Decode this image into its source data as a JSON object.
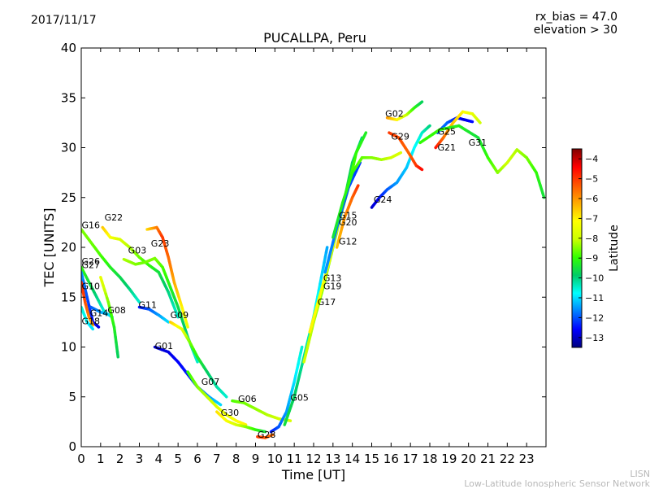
{
  "header": {
    "date": "2017/11/17",
    "rx_bias": "rx_bias = 47.0",
    "elevation": "elevation > 30"
  },
  "credits": {
    "line1": "LISN",
    "line2": "Low-Latitude Ionospheric Sensor Network"
  },
  "colormap": [
    "#00007f",
    "#0000ff",
    "#007fff",
    "#00ffff",
    "#00cc66",
    "#33ff00",
    "#ccff00",
    "#ffff00",
    "#ffaa00",
    "#ff5500",
    "#ff0000",
    "#7f0000"
  ],
  "chart_data": {
    "type": "scatter",
    "title": "PUCALLPA, Peru",
    "xlabel": "Time [UT]",
    "ylabel": "TEC [UNITS]",
    "xlim": [
      0,
      24
    ],
    "ylim": [
      0,
      40
    ],
    "x_ticks": [
      "0",
      "1",
      "2",
      "3",
      "4",
      "5",
      "6",
      "7",
      "8",
      "9",
      "10",
      "11",
      "12",
      "13",
      "14",
      "15",
      "16",
      "17",
      "18",
      "19",
      "20",
      "21",
      "22",
      "23"
    ],
    "y_ticks": [
      "0",
      "5",
      "10",
      "15",
      "20",
      "25",
      "30",
      "35",
      "40"
    ],
    "colorbar": {
      "label": "Latitude",
      "min": -13.5,
      "max": -3.5,
      "ticks": [
        "−4",
        "−5",
        "−6",
        "−7",
        "−8",
        "−9",
        "−10",
        "−11",
        "−12",
        "−13"
      ],
      "tick_values": [
        -4,
        -5,
        -6,
        -7,
        -8,
        -9,
        -10,
        -11,
        -12,
        -13
      ]
    },
    "series": [
      {
        "name": "G16",
        "label_at": [
          0.02,
          21.9
        ],
        "points": [
          [
            0.0,
            21.8,
            -8.5
          ],
          [
            0.5,
            20.5,
            -8.6
          ],
          [
            1.0,
            19.2,
            -8.8
          ],
          [
            1.5,
            18.0,
            -9.2
          ],
          [
            2.0,
            17.0,
            -9.6
          ],
          [
            2.5,
            15.8,
            -10.0
          ],
          [
            3.0,
            14.5,
            -10.5
          ]
        ]
      },
      {
        "name": "G22",
        "label_at": [
          1.2,
          22.7
        ],
        "points": [
          [
            1.1,
            22.0,
            -6.5
          ],
          [
            1.5,
            21.0,
            -7.2
          ],
          [
            2.0,
            20.8,
            -7.8
          ],
          [
            2.5,
            20.0,
            -8.2
          ],
          [
            3.0,
            19.0,
            -8.6
          ],
          [
            3.5,
            18.2,
            -9.0
          ],
          [
            4.0,
            17.5,
            -9.5
          ],
          [
            4.5,
            15.5,
            -10.0
          ],
          [
            5.0,
            13.0,
            -10.5
          ]
        ]
      },
      {
        "name": "G03",
        "label_at": [
          2.42,
          19.4
        ],
        "points": [
          [
            2.2,
            18.8,
            -8.2
          ],
          [
            2.8,
            18.3,
            -8.5
          ],
          [
            3.3,
            18.5,
            -8.6
          ],
          [
            3.8,
            18.9,
            -8.5
          ],
          [
            4.2,
            18.0,
            -8.8
          ],
          [
            4.6,
            16.0,
            -9.2
          ],
          [
            5.0,
            14.0,
            -9.6
          ],
          [
            5.5,
            11.0,
            -10.0
          ],
          [
            6.0,
            8.5,
            -10.5
          ]
        ]
      },
      {
        "name": "G23",
        "label_at": [
          3.6,
          20.1
        ],
        "points": [
          [
            3.4,
            21.8,
            -6.8
          ],
          [
            3.9,
            22.0,
            -5.8
          ],
          [
            4.2,
            21.0,
            -5.0
          ],
          [
            4.5,
            19.0,
            -5.5
          ],
          [
            4.8,
            16.5,
            -6.2
          ],
          [
            5.2,
            14.0,
            -7.0
          ],
          [
            5.5,
            12.0,
            -7.5
          ]
        ]
      },
      {
        "name": "G26",
        "label_at": [
          0.02,
          18.3
        ],
        "points": [
          [
            0.0,
            18.0,
            -9.0
          ],
          [
            0.4,
            16.5,
            -9.5
          ],
          [
            0.8,
            15.0,
            -10.0
          ],
          [
            1.2,
            13.5,
            -10.6
          ],
          [
            1.6,
            13.0,
            -11.2
          ]
        ]
      },
      {
        "name": "G27",
        "label_at": [
          0.02,
          17.9
        ],
        "points": [
          [
            0.0,
            17.5,
            -11.5
          ],
          [
            0.3,
            15.0,
            -12.0
          ],
          [
            0.6,
            12.5,
            -12.5
          ],
          [
            0.9,
            12.0,
            -12.8
          ]
        ]
      },
      {
        "name": "G10",
        "label_at": [
          0.02,
          15.8
        ],
        "points": [
          [
            0.0,
            16.5,
            -4.8
          ],
          [
            0.2,
            14.5,
            -5.2
          ],
          [
            0.4,
            13.0,
            -5.8
          ],
          [
            0.6,
            12.2,
            -6.2
          ]
        ]
      },
      {
        "name": "G14",
        "label_at": [
          0.45,
          13.1
        ],
        "points": [
          [
            0.5,
            14.0,
            -12.0
          ],
          [
            1.0,
            13.5,
            -11.5
          ],
          [
            1.5,
            13.2,
            -11.0
          ]
        ]
      },
      {
        "name": "G18",
        "label_at": [
          0.02,
          12.3
        ],
        "points": [
          [
            0.0,
            14.0,
            -10.5
          ],
          [
            0.3,
            12.5,
            -10.8
          ],
          [
            0.6,
            11.8,
            -11.0
          ]
        ]
      },
      {
        "name": "G08",
        "label_at": [
          1.36,
          13.4
        ],
        "points": [
          [
            1.0,
            17.0,
            -7.5
          ],
          [
            1.4,
            14.5,
            -8.5
          ],
          [
            1.7,
            12.0,
            -9.2
          ],
          [
            1.9,
            9.0,
            -9.8
          ]
        ]
      },
      {
        "name": "G11",
        "label_at": [
          2.96,
          13.9
        ],
        "points": [
          [
            3.0,
            14.0,
            -12.5
          ],
          [
            3.5,
            13.8,
            -12.0
          ],
          [
            4.0,
            13.2,
            -11.5
          ],
          [
            4.5,
            12.5,
            -11.0
          ]
        ]
      },
      {
        "name": "G01",
        "label_at": [
          3.8,
          9.8
        ],
        "points": [
          [
            3.8,
            10.0,
            -13.0
          ],
          [
            4.5,
            9.5,
            -12.8
          ],
          [
            5.0,
            8.5,
            -12.6
          ],
          [
            5.6,
            7.0,
            -12.4
          ],
          [
            6.0,
            6.0,
            -12.0
          ],
          [
            6.6,
            5.0,
            -11.5
          ],
          [
            7.2,
            4.2,
            -11.0
          ]
        ]
      },
      {
        "name": "G09",
        "label_at": [
          4.6,
          12.9
        ],
        "points": [
          [
            4.6,
            12.5,
            -6.5
          ],
          [
            5.2,
            11.8,
            -7.5
          ],
          [
            5.6,
            10.5,
            -8.5
          ],
          [
            6.0,
            9.0,
            -9.2
          ],
          [
            6.5,
            7.5,
            -9.8
          ],
          [
            7.0,
            6.0,
            -10.2
          ],
          [
            7.5,
            5.0,
            -10.5
          ]
        ]
      },
      {
        "name": "G07",
        "label_at": [
          6.2,
          6.2
        ],
        "points": [
          [
            5.5,
            7.5,
            -9.0
          ],
          [
            6.0,
            6.0,
            -8.5
          ],
          [
            6.5,
            5.0,
            -8.2
          ],
          [
            7.0,
            4.0,
            -7.8
          ],
          [
            7.5,
            3.2,
            -7.5
          ],
          [
            8.0,
            2.6,
            -7.2
          ],
          [
            8.5,
            2.2,
            -7.0
          ]
        ]
      },
      {
        "name": "G30",
        "label_at": [
          7.2,
          3.1
        ],
        "points": [
          [
            7.0,
            3.5,
            -6.8
          ],
          [
            7.5,
            2.6,
            -7.2
          ],
          [
            8.0,
            2.2,
            -7.8
          ],
          [
            8.5,
            2.0,
            -8.4
          ],
          [
            9.0,
            1.7,
            -9.0
          ],
          [
            9.5,
            1.5,
            -9.5
          ]
        ]
      },
      {
        "name": "G06",
        "label_at": [
          8.1,
          4.5
        ],
        "points": [
          [
            7.8,
            4.6,
            -8.8
          ],
          [
            8.4,
            4.4,
            -8.6
          ],
          [
            9.0,
            3.8,
            -8.4
          ],
          [
            9.6,
            3.2,
            -8.2
          ],
          [
            10.2,
            2.8,
            -8.0
          ],
          [
            10.8,
            2.6,
            -7.8
          ]
        ]
      },
      {
        "name": "G28",
        "label_at": [
          9.1,
          0.9
        ],
        "points": [
          [
            9.1,
            1.0,
            -5.0
          ],
          [
            9.5,
            0.9,
            -5.3
          ],
          [
            9.9,
            1.2,
            -5.6
          ]
        ]
      },
      {
        "name": "G05",
        "label_at": [
          10.8,
          4.6
        ],
        "points": [
          [
            9.8,
            1.5,
            -12.5
          ],
          [
            10.2,
            2.0,
            -12.0
          ],
          [
            10.6,
            3.5,
            -11.5
          ],
          [
            11.0,
            6.5,
            -11.0
          ],
          [
            11.4,
            10.0,
            -10.5
          ]
        ]
      },
      {
        "name": "G17",
        "label_at": [
          12.2,
          14.2
        ],
        "points": [
          [
            10.5,
            2.2,
            -9.5
          ],
          [
            11.0,
            5.0,
            -9.8
          ],
          [
            11.5,
            9.0,
            -10.2
          ],
          [
            12.0,
            13.0,
            -10.5
          ],
          [
            12.4,
            17.0,
            -11.0
          ],
          [
            12.7,
            20.0,
            -11.4
          ]
        ]
      },
      {
        "name": "G19",
        "label_at": [
          12.5,
          15.8
        ],
        "points": [
          [
            11.5,
            8.5,
            -8.0
          ],
          [
            12.0,
            12.5,
            -8.2
          ],
          [
            12.5,
            16.0,
            -8.5
          ],
          [
            13.0,
            20.0,
            -8.8
          ],
          [
            13.5,
            24.0,
            -9.2
          ],
          [
            14.0,
            28.5,
            -9.8
          ],
          [
            14.5,
            31.0,
            -10.0
          ]
        ]
      },
      {
        "name": "G13",
        "label_at": [
          12.5,
          16.6
        ],
        "points": [
          [
            11.8,
            11.5,
            -7.0
          ],
          [
            12.3,
            15.0,
            -7.2
          ],
          [
            12.8,
            18.5,
            -7.5
          ],
          [
            13.3,
            22.5,
            -8.0
          ],
          [
            13.8,
            26.0,
            -8.6
          ],
          [
            14.2,
            29.5,
            -9.0
          ],
          [
            14.7,
            31.5,
            -9.3
          ]
        ]
      },
      {
        "name": "G12",
        "label_at": [
          13.3,
          20.3
        ],
        "points": [
          [
            13.2,
            20.0,
            -6.5
          ],
          [
            13.6,
            23.0,
            -6.0
          ],
          [
            14.0,
            25.0,
            -5.5
          ],
          [
            14.3,
            26.2,
            -5.0
          ]
        ]
      },
      {
        "name": "G20",
        "label_at": [
          13.3,
          22.2
        ],
        "points": [
          [
            12.6,
            17.5,
            -11.5
          ],
          [
            13.2,
            22.0,
            -11.8
          ],
          [
            13.8,
            26.0,
            -12.0
          ],
          [
            14.4,
            28.5,
            -12.2
          ]
        ]
      },
      {
        "name": "G15",
        "label_at": [
          13.3,
          22.9
        ],
        "points": [
          [
            13.0,
            21.0,
            -9.5
          ],
          [
            13.5,
            24.5,
            -9.2
          ],
          [
            14.0,
            27.5,
            -9.0
          ],
          [
            14.5,
            29.0,
            -8.7
          ],
          [
            15.0,
            29.0,
            -8.5
          ],
          [
            15.5,
            28.8,
            -8.3
          ],
          [
            16.0,
            29.0,
            -8.0
          ],
          [
            16.5,
            29.5,
            -7.8
          ]
        ]
      },
      {
        "name": "G24",
        "label_at": [
          15.1,
          24.5
        ],
        "points": [
          [
            15.0,
            24.0,
            -13.0
          ],
          [
            15.4,
            25.0,
            -12.5
          ],
          [
            15.8,
            25.8,
            -12.0
          ],
          [
            16.3,
            26.5,
            -11.5
          ],
          [
            16.8,
            28.0,
            -11.2
          ],
          [
            17.2,
            30.0,
            -10.8
          ],
          [
            17.6,
            31.5,
            -10.5
          ],
          [
            18.0,
            32.2,
            -10.0
          ]
        ]
      },
      {
        "name": "G02",
        "label_at": [
          15.7,
          33.1
        ],
        "points": [
          [
            15.8,
            33.0,
            -6.0
          ],
          [
            16.3,
            32.8,
            -7.0
          ],
          [
            16.8,
            33.3,
            -8.0
          ],
          [
            17.2,
            34.0,
            -9.0
          ],
          [
            17.6,
            34.6,
            -9.8
          ]
        ]
      },
      {
        "name": "G29",
        "label_at": [
          16.0,
          30.8
        ],
        "points": [
          [
            15.9,
            31.5,
            -5.0
          ],
          [
            16.4,
            31.0,
            -5.2
          ],
          [
            16.9,
            29.5,
            -5.5
          ],
          [
            17.3,
            28.2,
            -5.0
          ],
          [
            17.6,
            27.8,
            -4.5
          ]
        ]
      },
      {
        "name": "G25",
        "label_at": [
          18.4,
          31.3
        ],
        "points": [
          [
            18.4,
            31.5,
            -12.0
          ],
          [
            18.9,
            32.5,
            -11.8
          ],
          [
            19.4,
            33.0,
            -12.5
          ],
          [
            19.8,
            32.8,
            -12.8
          ],
          [
            20.2,
            32.6,
            -12.5
          ]
        ]
      },
      {
        "name": "G21",
        "label_at": [
          18.4,
          29.7
        ],
        "points": [
          [
            18.3,
            30.0,
            -4.5
          ],
          [
            18.7,
            31.0,
            -5.5
          ],
          [
            19.2,
            32.5,
            -6.5
          ],
          [
            19.7,
            33.6,
            -7.0
          ],
          [
            20.2,
            33.4,
            -7.5
          ],
          [
            20.6,
            32.5,
            -8.0
          ]
        ]
      },
      {
        "name": "G31",
        "label_at": [
          20.0,
          30.2
        ],
        "points": [
          [
            17.5,
            30.5,
            -9.0
          ],
          [
            18.5,
            31.8,
            -9.0
          ],
          [
            19.5,
            32.2,
            -9.2
          ],
          [
            20.5,
            31.0,
            -9.5
          ],
          [
            21.0,
            29.0,
            -9.0
          ],
          [
            21.5,
            27.5,
            -8.5
          ],
          [
            22.0,
            28.5,
            -8.0
          ],
          [
            22.5,
            29.8,
            -8.2
          ],
          [
            23.0,
            29.0,
            -8.5
          ],
          [
            23.5,
            27.5,
            -9.0
          ],
          [
            23.9,
            25.0,
            -9.5
          ]
        ]
      }
    ]
  }
}
